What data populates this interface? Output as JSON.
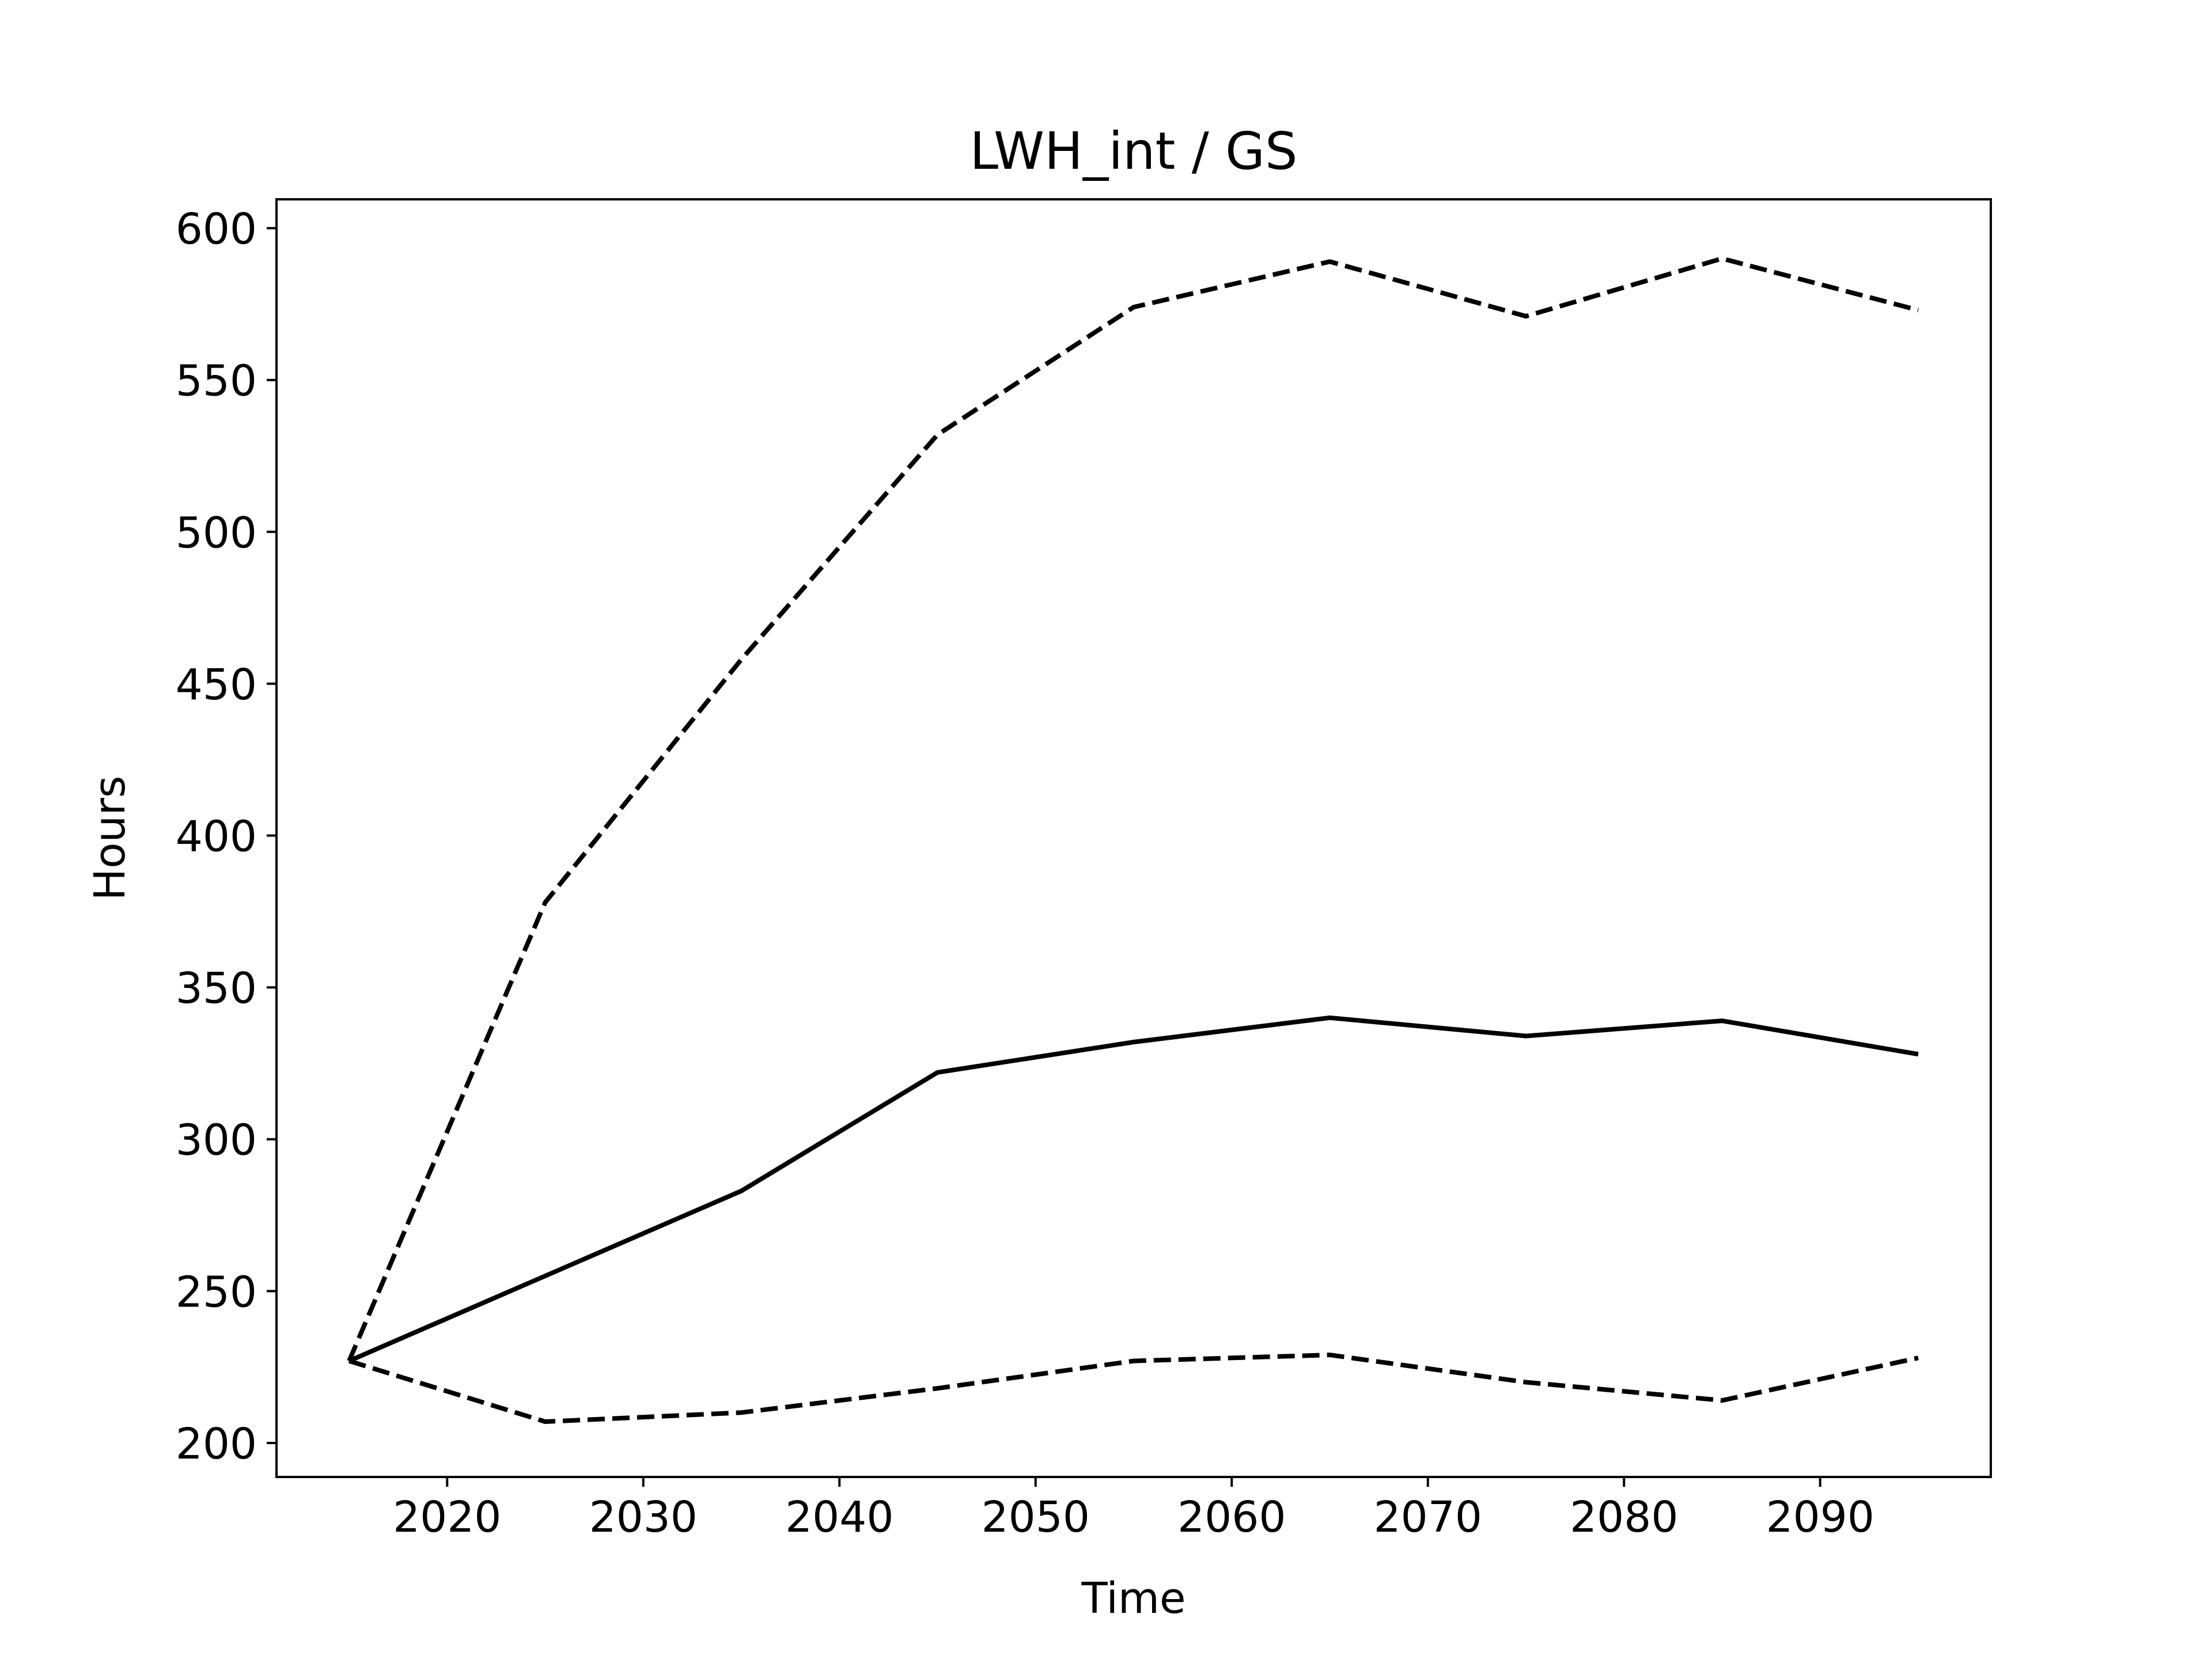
{
  "chart_data": {
    "type": "line",
    "title": "LWH_int / GS",
    "xlabel": "Time",
    "ylabel": "Hours",
    "xlim": [
      2011.3,
      2098.7
    ],
    "ylim": [
      188.8,
      609.5
    ],
    "x_ticks": [
      2020,
      2030,
      2040,
      2050,
      2060,
      2070,
      2080,
      2090
    ],
    "y_ticks": [
      200,
      250,
      300,
      350,
      400,
      450,
      500,
      550,
      600
    ],
    "grid": false,
    "legend": "none",
    "x": [
      2015,
      2025,
      2035,
      2045,
      2055,
      2065,
      2075,
      2085,
      2095
    ],
    "series": [
      {
        "style": "solid",
        "color": "#000000",
        "values": [
          227,
          255,
          283,
          322,
          332,
          340,
          334,
          339,
          328
        ]
      },
      {
        "style": "dashed",
        "color": "#000000",
        "values": [
          227,
          378,
          458,
          532,
          574,
          589,
          571,
          590,
          573
        ]
      },
      {
        "style": "dashed",
        "color": "#000000",
        "values": [
          227,
          207,
          210,
          218,
          227,
          229,
          220,
          214,
          228
        ]
      }
    ]
  }
}
